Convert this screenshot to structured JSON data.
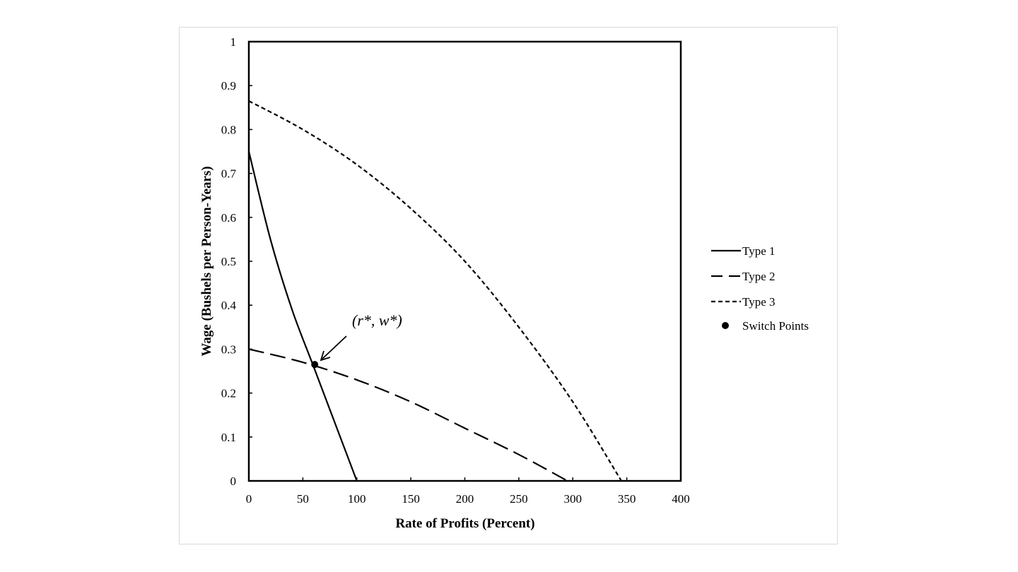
{
  "chart_data": {
    "type": "line",
    "xlabel": "Rate of Profits (Percent)",
    "ylabel": "Wage (Bushels per Person-Years)",
    "xlim": [
      0,
      400
    ],
    "ylim": [
      0,
      1
    ],
    "xticks": [
      0,
      50,
      100,
      150,
      200,
      250,
      300,
      350,
      400
    ],
    "yticks": [
      0,
      0.1,
      0.2,
      0.3,
      0.4,
      0.5,
      0.6,
      0.7,
      0.8,
      0.9,
      1
    ],
    "xtick_labels": [
      "0",
      "50",
      "100",
      "150",
      "200",
      "250",
      "300",
      "350",
      "400"
    ],
    "ytick_labels": [
      "0",
      "0.1",
      "0.2",
      "0.3",
      "0.4",
      "0.5",
      "0.6",
      "0.7",
      "0.8",
      "0.9",
      "1"
    ],
    "grid": false,
    "legend_position": "right",
    "series": [
      {
        "name": "Type 1",
        "style": "solid",
        "x": [
          0,
          20,
          40,
          60,
          80,
          100
        ],
        "y": [
          0.75,
          0.55,
          0.39,
          0.26,
          0.13,
          0.0
        ]
      },
      {
        "name": "Type 2",
        "style": "long-dash",
        "x": [
          0,
          50,
          100,
          150,
          200,
          250,
          295
        ],
        "y": [
          0.3,
          0.27,
          0.23,
          0.18,
          0.12,
          0.06,
          0.0
        ]
      },
      {
        "name": "Type 3",
        "style": "short-dash",
        "x": [
          0,
          50,
          100,
          150,
          200,
          250,
          300,
          345
        ],
        "y": [
          0.865,
          0.8,
          0.72,
          0.62,
          0.5,
          0.35,
          0.18,
          0.0
        ]
      }
    ],
    "switch_points": {
      "name": "Switch Points",
      "x": [
        61
      ],
      "y": [
        0.265
      ]
    },
    "annotation": {
      "text": "(r*, w*)",
      "x": 61,
      "y": 0.265
    },
    "colors": {
      "line": "#000000",
      "background": "#ffffff",
      "frame_border": "#d9d9d9"
    }
  }
}
